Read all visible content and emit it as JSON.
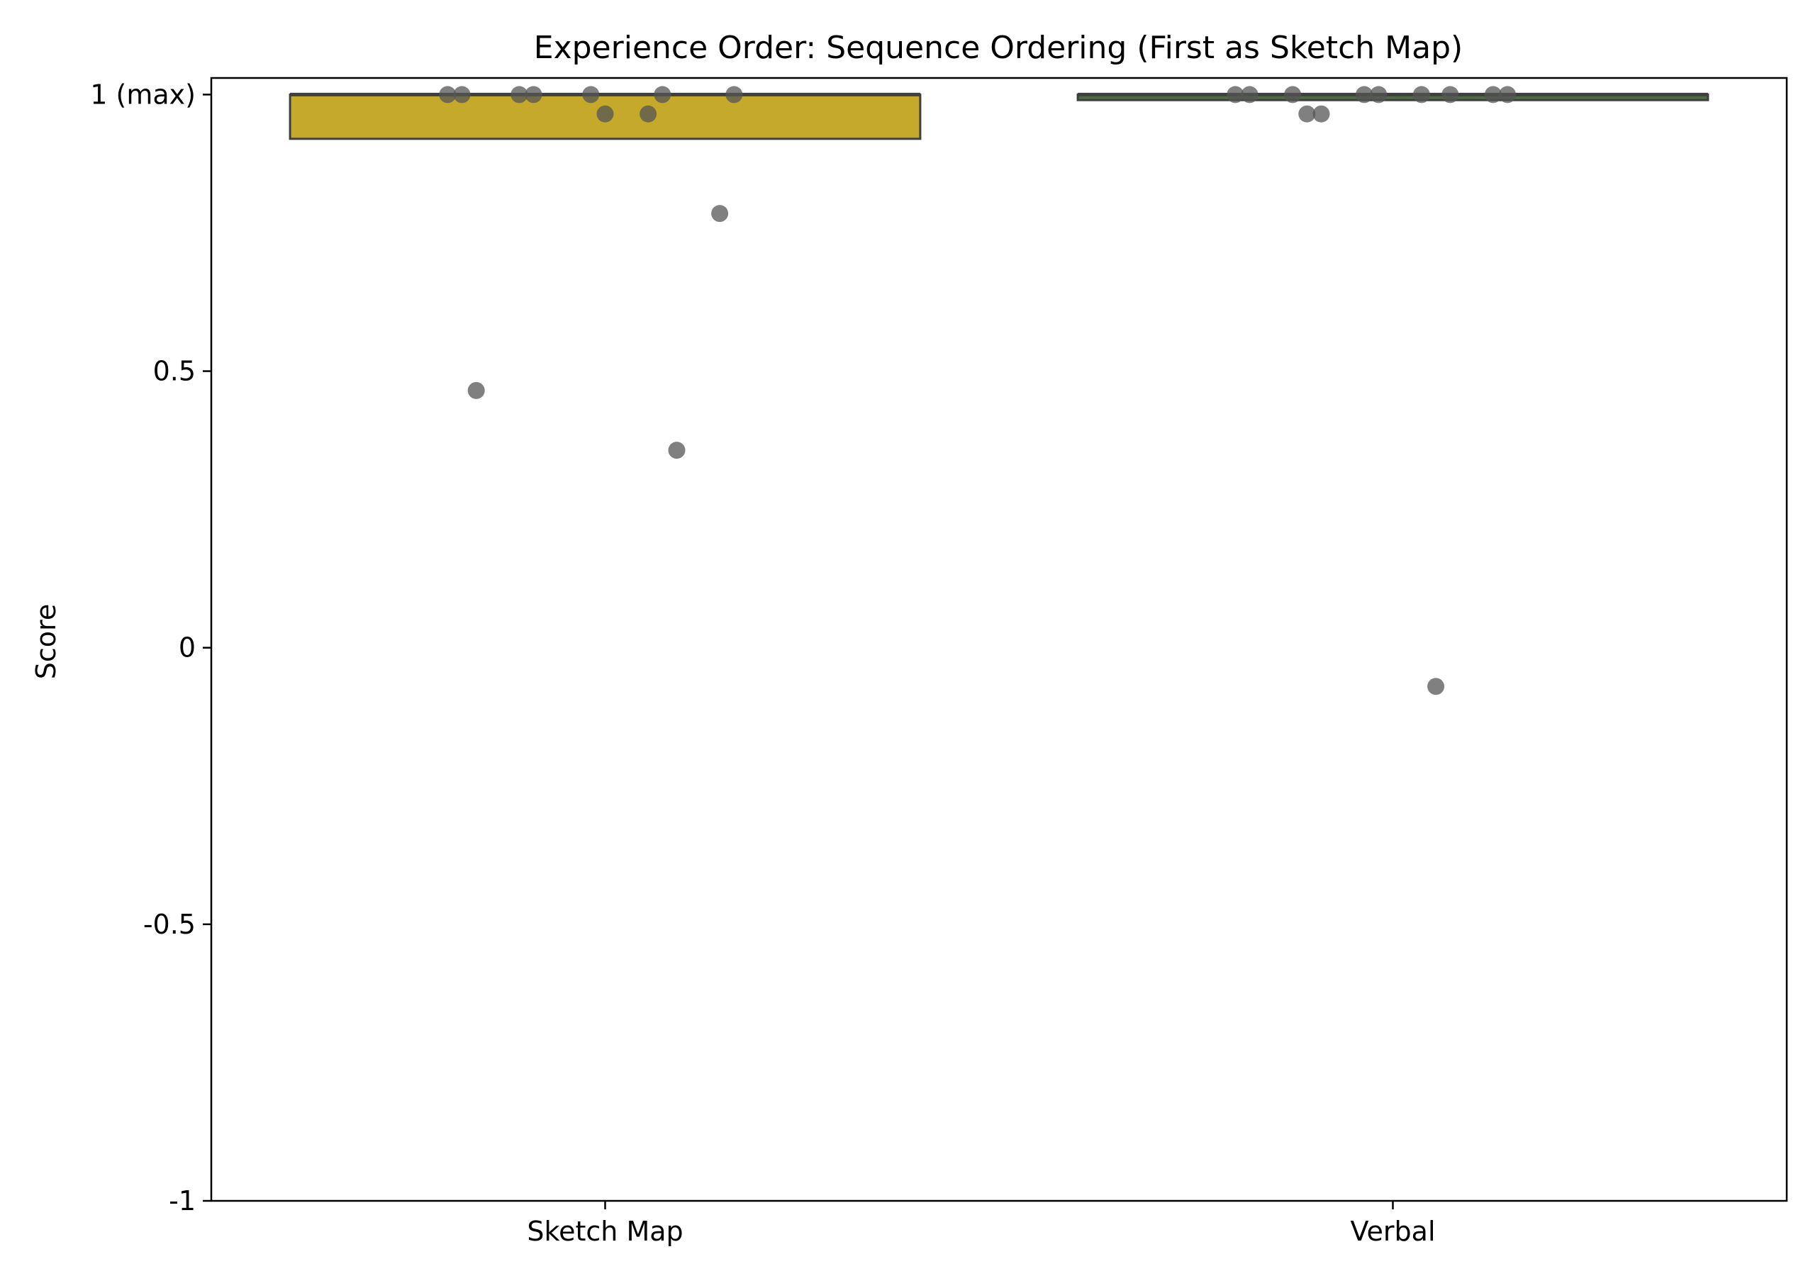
{
  "chart_data": {
    "type": "box",
    "title": "Experience Order: Sequence Ordering (First as Sketch Map)",
    "xlabel": "",
    "ylabel": "Score",
    "ylim": [
      -1,
      1.03
    ],
    "yticks": [
      {
        "value": 1,
        "label": "1 (max)"
      },
      {
        "value": 0.5,
        "label": "0.5"
      },
      {
        "value": 0,
        "label": "0"
      },
      {
        "value": -0.5,
        "label": "-0.5"
      },
      {
        "value": -1,
        "label": "-1"
      }
    ],
    "categories": [
      "Sketch Map",
      "Verbal"
    ],
    "grid": false,
    "boxes": [
      {
        "category": "Sketch Map",
        "q1": 0.92,
        "median": 1.0,
        "q3": 1.0,
        "whisker_low": 0.92,
        "whisker_high": 1.0,
        "color": "#C4A92A"
      },
      {
        "category": "Verbal",
        "q1": 0.99,
        "median": 1.0,
        "q3": 1.0,
        "whisker_low": 0.99,
        "whisker_high": 1.0,
        "color": "#4F6A45"
      }
    ],
    "points": [
      {
        "category": "Sketch Map",
        "values": [
          1.0,
          0.965,
          1.0,
          0.785,
          1.0,
          1.0,
          1.0,
          1.0,
          1.0,
          0.965,
          0.465,
          0.357
        ]
      },
      {
        "category": "Verbal",
        "values": [
          1.0,
          1.0,
          1.0,
          1.0,
          1.0,
          -0.07,
          0.965,
          1.0,
          1.0,
          1.0,
          1.0,
          0.965
        ]
      }
    ],
    "point_color": "#555555"
  }
}
